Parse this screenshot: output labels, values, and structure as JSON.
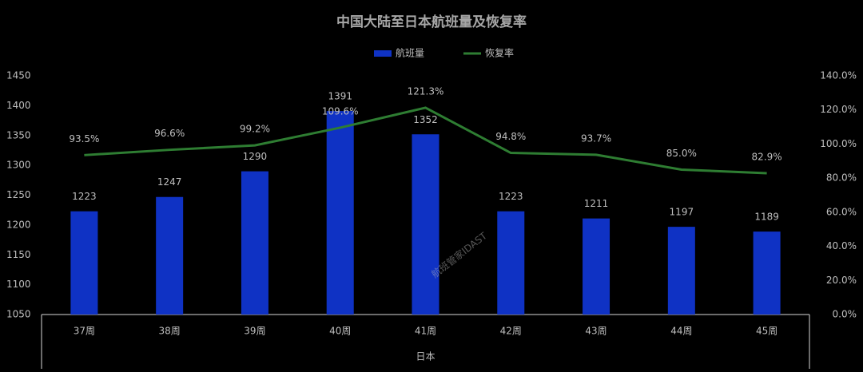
{
  "chart_data": {
    "type": "bar",
    "title": "中国大陆至日本航班量及恢复率",
    "x_group_label": "日本",
    "watermark": "航班管家IDAST",
    "categories": [
      "37周",
      "38周",
      "39周",
      "40周",
      "41周",
      "42周",
      "43周",
      "44周",
      "45周"
    ],
    "series": [
      {
        "name": "航班量",
        "type": "bar",
        "color": "#0f32c4",
        "values": [
          1223,
          1247,
          1290,
          1391,
          1352,
          1223,
          1211,
          1197,
          1189
        ]
      },
      {
        "name": "恢复率",
        "type": "line",
        "axis": "y2",
        "color": "#2e7d32",
        "values": [
          93.5,
          96.6,
          99.2,
          109.6,
          121.3,
          94.8,
          93.7,
          85.0,
          82.9
        ],
        "value_labels": [
          "93.5%",
          "96.6%",
          "99.2%",
          "109.6%",
          "121.3%",
          "94.8%",
          "93.7%",
          "85.0%",
          "82.9%"
        ]
      }
    ],
    "ylim": [
      1050,
      1450
    ],
    "yticks": [
      1050,
      1100,
      1150,
      1200,
      1250,
      1300,
      1350,
      1400,
      1450
    ],
    "y2lim": [
      0,
      140
    ],
    "y2ticks": [
      {
        "value": 0,
        "label": "0.0%"
      },
      {
        "value": 20,
        "label": "20.0%"
      },
      {
        "value": 40,
        "label": "40.0%"
      },
      {
        "value": 60,
        "label": "60.0%"
      },
      {
        "value": 80,
        "label": "80.0%"
      },
      {
        "value": 100,
        "label": "100.0%"
      },
      {
        "value": 120,
        "label": "120.0%"
      },
      {
        "value": 140,
        "label": "140.0%"
      }
    ],
    "legend": "top",
    "grid": false
  }
}
